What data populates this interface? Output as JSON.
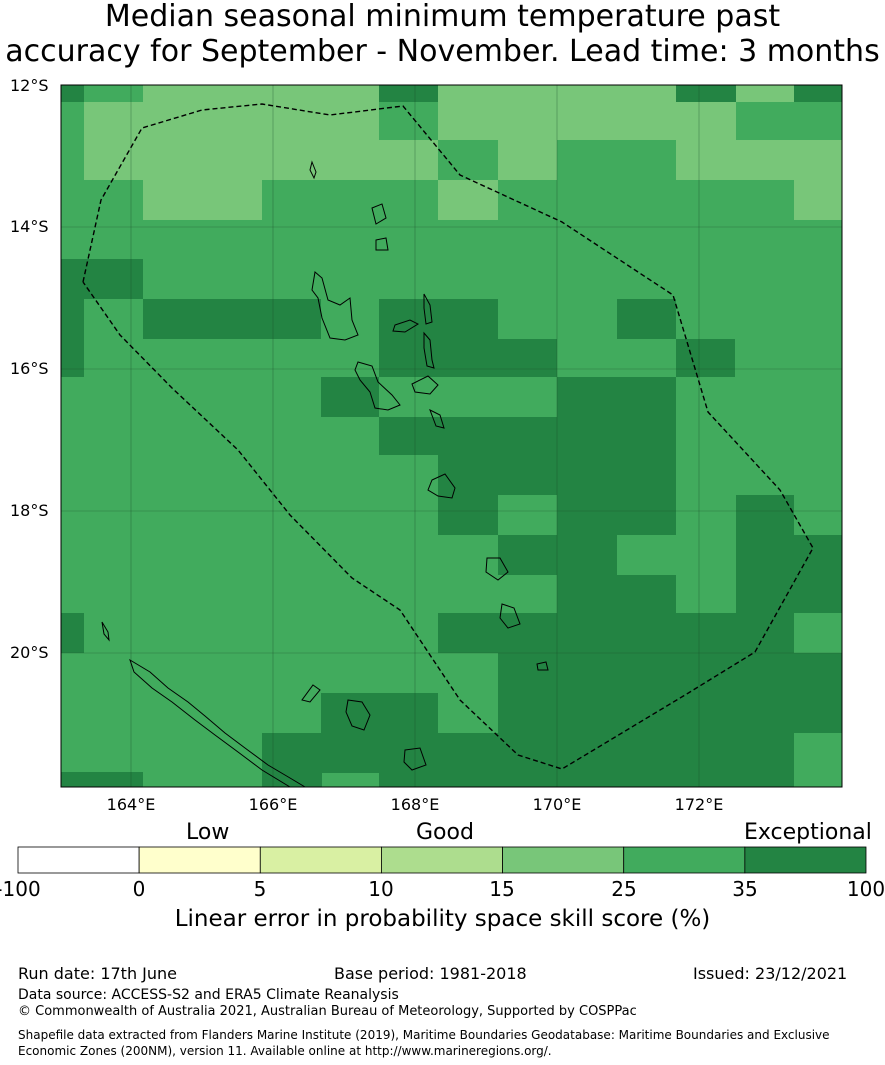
{
  "title": {
    "line1": "Median seasonal minimum temperature past",
    "line2": "accuracy for September - November. Lead time: 3 months"
  },
  "map": {
    "lat_labels": [
      "12°S",
      "14°S",
      "16°S",
      "18°S",
      "20°S"
    ],
    "lon_labels": [
      "164°E",
      "166°E",
      "168°E",
      "170°E",
      "172°E"
    ],
    "colors": {
      "c15_25": "#78c679",
      "c25_35": "#41ab5d",
      "c35_100": "#238443"
    }
  },
  "legend": {
    "categories": [
      "Low",
      "Good",
      "Exceptional"
    ],
    "bins": [
      {
        "from": -100,
        "to": 0,
        "color": "#ffffff"
      },
      {
        "from": 0,
        "to": 5,
        "color": "#ffffcc"
      },
      {
        "from": 5,
        "to": 10,
        "color": "#d9f0a3"
      },
      {
        "from": 10,
        "to": 15,
        "color": "#addd8e"
      },
      {
        "from": 15,
        "to": 25,
        "color": "#78c679"
      },
      {
        "from": 25,
        "to": 35,
        "color": "#41ab5d"
      },
      {
        "from": 35,
        "to": 100,
        "color": "#238443"
      }
    ],
    "tick_labels": [
      "-100",
      "0",
      "5",
      "10",
      "15",
      "25",
      "35",
      "100"
    ],
    "title": "Linear error in probability space skill score (%)"
  },
  "footer": {
    "run_date": "Run date: 17th June",
    "base_period": "Base period: 1981-2018",
    "issued": "Issued: 23/12/2021",
    "data_source": "Data source: ACCESS-S2 and ERA5 Climate Reanalysis",
    "copyright": "© Commonwealth of Australia 2021, Australian Bureau of Meteorology, Supported by COSPPac",
    "shapefile_line1": "Shapefile data extracted from Flanders Marine Institute (2019), Maritime Boundaries Geodatabase: Maritime Boundaries and Exclusive",
    "shapefile_line2": "Economic Zones (200NM), version 11. Available online at http://www.marineregions.org/."
  }
}
